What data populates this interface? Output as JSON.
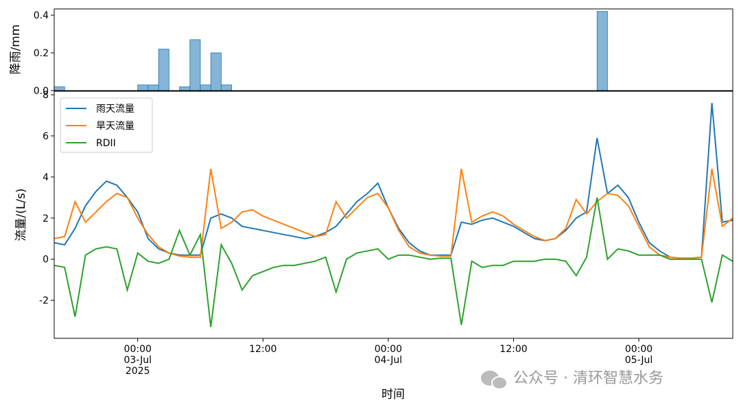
{
  "chart_data": [
    {
      "type": "bar",
      "ylabel": "降雨/mm",
      "x": [
        "2025-07-02 16:00",
        "2025-07-03 00:00",
        "2025-07-03 01:00",
        "2025-07-03 02:00",
        "2025-07-03 04:00",
        "2025-07-03 05:00",
        "2025-07-03 06:00",
        "2025-07-03 07:00",
        "2025-07-03 08:00",
        "2025-07-04 20:00"
      ],
      "values": [
        0.02,
        0.03,
        0.03,
        0.22,
        0.02,
        0.27,
        0.03,
        0.2,
        0.03,
        0.42
      ],
      "color": "#1f77b4",
      "xlim": [
        "2025-07-02 16:00",
        "2025-07-05 09:00"
      ],
      "ylim": [
        0,
        0.433
      ],
      "yticks": [
        {
          "value": 0,
          "label": "0.0"
        },
        0.2,
        0.4
      ]
    },
    {
      "type": "line",
      "ylabel": "流量/(L/s)",
      "xlabel": "时间",
      "legend": "upper left",
      "watermark": "公众号 · 清环智慧水务",
      "x": [
        "2025-07-02 16:00",
        "2025-07-02 17:00",
        "2025-07-02 18:00",
        "2025-07-02 19:00",
        "2025-07-02 20:00",
        "2025-07-02 21:00",
        "2025-07-02 22:00",
        "2025-07-02 23:00",
        "2025-07-03 00:00",
        "2025-07-03 01:00",
        "2025-07-03 02:00",
        "2025-07-03 03:00",
        "2025-07-03 04:00",
        "2025-07-03 05:00",
        "2025-07-03 06:00",
        "2025-07-03 07:00",
        "2025-07-03 08:00",
        "2025-07-03 09:00",
        "2025-07-03 10:00",
        "2025-07-03 11:00",
        "2025-07-03 12:00",
        "2025-07-03 13:00",
        "2025-07-03 14:00",
        "2025-07-03 15:00",
        "2025-07-03 16:00",
        "2025-07-03 17:00",
        "2025-07-03 18:00",
        "2025-07-03 19:00",
        "2025-07-03 20:00",
        "2025-07-03 21:00",
        "2025-07-03 22:00",
        "2025-07-03 23:00",
        "2025-07-04 00:00",
        "2025-07-04 01:00",
        "2025-07-04 02:00",
        "2025-07-04 03:00",
        "2025-07-04 04:00",
        "2025-07-04 05:00",
        "2025-07-04 06:00",
        "2025-07-04 07:00",
        "2025-07-04 08:00",
        "2025-07-04 09:00",
        "2025-07-04 10:00",
        "2025-07-04 11:00",
        "2025-07-04 12:00",
        "2025-07-04 13:00",
        "2025-07-04 14:00",
        "2025-07-04 15:00",
        "2025-07-04 16:00",
        "2025-07-04 17:00",
        "2025-07-04 18:00",
        "2025-07-04 19:00",
        "2025-07-04 20:00",
        "2025-07-04 21:00",
        "2025-07-04 22:00",
        "2025-07-04 23:00",
        "2025-07-05 00:00",
        "2025-07-05 01:00",
        "2025-07-05 02:00",
        "2025-07-05 03:00",
        "2025-07-05 04:00",
        "2025-07-05 05:00",
        "2025-07-05 06:00",
        "2025-07-05 07:00",
        "2025-07-05 08:00",
        "2025-07-05 09:00"
      ],
      "series": [
        {
          "name": "雨天流量",
          "color": "#1f77b4",
          "values": [
            0.8,
            0.7,
            1.5,
            2.6,
            3.3,
            3.8,
            3.6,
            3.0,
            2.3,
            1.0,
            0.5,
            0.3,
            0.2,
            0.2,
            0.2,
            2.0,
            2.2,
            2.0,
            1.6,
            1.5,
            1.4,
            1.3,
            1.2,
            1.1,
            1.0,
            1.1,
            1.3,
            1.6,
            2.2,
            2.8,
            3.2,
            3.7,
            2.5,
            1.5,
            0.8,
            0.4,
            0.2,
            0.2,
            0.2,
            1.8,
            1.7,
            1.9,
            2.0,
            1.8,
            1.6,
            1.3,
            1.0,
            0.9,
            1.0,
            1.4,
            2.0,
            2.3,
            5.9,
            3.2,
            3.6,
            3.0,
            1.8,
            0.8,
            0.4,
            0.1,
            0.05,
            0.05,
            0.1,
            7.6,
            1.8,
            1.9
          ]
        },
        {
          "name": "旱天流量",
          "color": "#ff7f0e",
          "values": [
            1.0,
            1.1,
            2.8,
            1.8,
            2.3,
            2.8,
            3.2,
            3.0,
            2.0,
            1.2,
            0.6,
            0.3,
            0.15,
            0.1,
            0.1,
            4.4,
            1.5,
            1.8,
            2.3,
            2.4,
            2.1,
            1.9,
            1.7,
            1.5,
            1.3,
            1.1,
            1.2,
            2.8,
            2.0,
            2.5,
            3.0,
            3.2,
            2.5,
            1.4,
            0.6,
            0.3,
            0.2,
            0.15,
            0.15,
            4.4,
            1.8,
            2.1,
            2.3,
            2.1,
            1.7,
            1.4,
            1.1,
            0.9,
            1.0,
            1.5,
            2.9,
            2.2,
            2.8,
            3.2,
            3.1,
            2.6,
            1.6,
            0.6,
            0.2,
            0.1,
            0.05,
            0.05,
            0.1,
            4.4,
            1.6,
            2.0
          ]
        },
        {
          "name": "RDII",
          "color": "#2ca02c",
          "values": [
            -0.3,
            -0.4,
            -2.8,
            0.2,
            0.5,
            0.6,
            0.5,
            -1.5,
            0.3,
            -0.1,
            -0.2,
            0.0,
            1.4,
            0.2,
            1.2,
            -3.3,
            0.7,
            -0.2,
            -1.5,
            -0.8,
            -0.6,
            -0.4,
            -0.3,
            -0.3,
            -0.2,
            -0.1,
            0.1,
            -1.6,
            0.0,
            0.3,
            0.4,
            0.5,
            0.0,
            0.2,
            0.2,
            0.1,
            0.0,
            0.05,
            0.05,
            -3.2,
            -0.1,
            -0.4,
            -0.3,
            -0.3,
            -0.1,
            -0.1,
            -0.1,
            0.0,
            0.0,
            -0.1,
            -0.8,
            0.1,
            3.0,
            0.0,
            0.5,
            0.4,
            0.2,
            0.2,
            0.2,
            0.0,
            0.0,
            0.0,
            0.0,
            -2.1,
            0.2,
            -0.1
          ]
        }
      ],
      "xlim": [
        "2025-07-02 16:00",
        "2025-07-05 09:00"
      ],
      "xticks": [
        {
          "value": "2025-07-03 00:00",
          "label": "00:00\n03-Jul\n2025"
        },
        {
          "value": "2025-07-03 12:00",
          "label": "12:00"
        },
        {
          "value": "2025-07-04 00:00",
          "label": "00:00\n04-Jul"
        },
        {
          "value": "2025-07-04 12:00",
          "label": "12:00"
        },
        {
          "value": "2025-07-05 00:00",
          "label": "00:00\n05-Jul"
        }
      ],
      "ylim": [
        -3.85,
        8.17
      ],
      "yticks": [
        -2,
        0,
        2,
        4,
        6,
        8
      ]
    }
  ]
}
